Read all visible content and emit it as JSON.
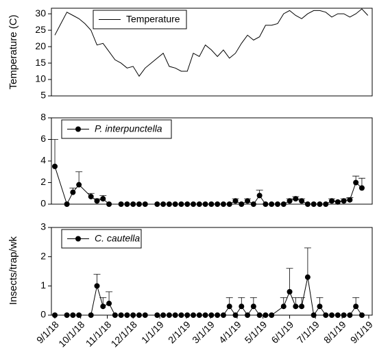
{
  "chart_data": [
    {
      "type": "line",
      "ylabel": "Temperature (C)",
      "legend": "upper left",
      "xlim": [
        "2018-08-28",
        "2019-09-05"
      ],
      "ylim": [
        5,
        31.7
      ],
      "yticks": [
        5,
        10,
        15,
        20,
        25,
        30
      ],
      "x": [
        "2018-09-01",
        "2018-09-08",
        "2018-09-15",
        "2018-09-22",
        "2018-09-29",
        "2018-10-06",
        "2018-10-13",
        "2018-10-20",
        "2018-10-27",
        "2018-11-03",
        "2018-11-10",
        "2018-11-17",
        "2018-11-24",
        "2018-12-01",
        "2018-12-08",
        "2018-12-15",
        "2018-12-22",
        "2018-12-29",
        "2019-01-05",
        "2019-01-12",
        "2019-01-19",
        "2019-01-26",
        "2019-02-02",
        "2019-02-09",
        "2019-02-16",
        "2019-02-23",
        "2019-03-02",
        "2019-03-09",
        "2019-03-16",
        "2019-03-23",
        "2019-03-30",
        "2019-04-06",
        "2019-04-13",
        "2019-04-20",
        "2019-04-27",
        "2019-05-04",
        "2019-05-11",
        "2019-05-18",
        "2019-05-25",
        "2019-06-01",
        "2019-06-08",
        "2019-06-15",
        "2019-06-22",
        "2019-06-29",
        "2019-07-06",
        "2019-07-13",
        "2019-07-20",
        "2019-07-27",
        "2019-08-03",
        "2019-08-10",
        "2019-08-17",
        "2019-08-24",
        "2019-08-31"
      ],
      "series": [
        {
          "name": "Temperature",
          "color": "#000000",
          "values": [
            23.5,
            27,
            30.5,
            29.5,
            28.5,
            27,
            25,
            20.5,
            21,
            18.5,
            16,
            15,
            13.5,
            14,
            11,
            13.5,
            15,
            16.5,
            18,
            14,
            13.5,
            12.5,
            12.5,
            18,
            17,
            20.5,
            19,
            17,
            19,
            16.5,
            18,
            21,
            23.5,
            22,
            23,
            26.5,
            26.5,
            27,
            30,
            31,
            29.5,
            28.5,
            30,
            31,
            31,
            30.5,
            29,
            30,
            30,
            29,
            30,
            31.5,
            29.5
          ]
        }
      ]
    },
    {
      "type": "errorline",
      "legend": "upper left",
      "xlim": [
        "2018-08-28",
        "2019-09-05"
      ],
      "ylim": [
        0,
        8
      ],
      "yticks": [
        0,
        2,
        4,
        6,
        8
      ],
      "x": [
        "2018-09-01",
        "2018-09-15",
        "2018-09-22",
        "2018-09-29",
        "2018-10-13",
        "2018-10-20",
        "2018-10-27",
        "2018-11-03",
        "2018-11-17",
        "2018-11-24",
        "2018-12-01",
        "2018-12-08",
        "2018-12-15",
        "2018-12-29",
        "2019-01-05",
        "2019-01-12",
        "2019-01-19",
        "2019-01-26",
        "2019-02-02",
        "2019-02-09",
        "2019-02-16",
        "2019-02-23",
        "2019-03-02",
        "2019-03-09",
        "2019-03-16",
        "2019-03-23",
        "2019-03-30",
        "2019-04-06",
        "2019-04-13",
        "2019-04-20",
        "2019-04-27",
        "2019-05-04",
        "2019-05-11",
        "2019-05-18",
        "2019-05-25",
        "2019-06-01",
        "2019-06-08",
        "2019-06-15",
        "2019-06-22",
        "2019-06-29",
        "2019-07-06",
        "2019-07-13",
        "2019-07-20",
        "2019-07-27",
        "2019-08-03",
        "2019-08-10",
        "2019-08-17",
        "2019-08-24"
      ],
      "series": [
        {
          "name": "P. interpunctella",
          "color": "#000000",
          "values": [
            3.5,
            0,
            1.1,
            1.8,
            0.7,
            0.3,
            0.5,
            0,
            0,
            0,
            0,
            0,
            0,
            0,
            0,
            0,
            0,
            0,
            0,
            0,
            0,
            0,
            0,
            0,
            0,
            0,
            0.3,
            0,
            0.3,
            0,
            0.8,
            0,
            0,
            0,
            0,
            0.3,
            0.5,
            0.3,
            0,
            0,
            0,
            0,
            0.3,
            0.2,
            0.3,
            0.4,
            2.0,
            1.5
          ],
          "errors": [
            2.5,
            0,
            0.4,
            1.2,
            0.3,
            0.2,
            0.3,
            0,
            0,
            0,
            0,
            0,
            0,
            0,
            0,
            0,
            0,
            0,
            0,
            0,
            0,
            0,
            0,
            0,
            0,
            0,
            0.2,
            0,
            0.2,
            0,
            0.5,
            0,
            0,
            0,
            0,
            0.2,
            0.2,
            0.2,
            0,
            0,
            0,
            0,
            0.2,
            0.1,
            0.2,
            0.2,
            0.6,
            0.9
          ]
        }
      ]
    },
    {
      "type": "errorline",
      "ylabel": "Insects/trap/wk",
      "legend": "upper left",
      "xlim": [
        "2018-08-28",
        "2019-09-05"
      ],
      "ylim": [
        0,
        3
      ],
      "yticks": [
        0,
        1,
        2,
        3
      ],
      "xticks": [
        {
          "value": "2018-09-01",
          "label": "9/1/18"
        },
        {
          "value": "2018-10-01",
          "label": "10/1/18"
        },
        {
          "value": "2018-11-01",
          "label": "11/1/18"
        },
        {
          "value": "2018-12-01",
          "label": "12/1/18"
        },
        {
          "value": "2019-01-01",
          "label": "1/1/19"
        },
        {
          "value": "2019-02-01",
          "label": "2/1/19"
        },
        {
          "value": "2019-03-01",
          "label": "3/1/19"
        },
        {
          "value": "2019-04-01",
          "label": "4/1/19"
        },
        {
          "value": "2019-05-01",
          "label": "5/1/19"
        },
        {
          "value": "2019-06-01",
          "label": "6/1/19"
        },
        {
          "value": "2019-07-01",
          "label": "7/1/19"
        },
        {
          "value": "2019-08-01",
          "label": "8/1/19"
        },
        {
          "value": "2019-09-01",
          "label": "9/1/19"
        }
      ],
      "x": [
        "2018-09-01",
        "2018-09-15",
        "2018-09-22",
        "2018-09-29",
        "2018-10-13",
        "2018-10-20",
        "2018-10-27",
        "2018-11-03",
        "2018-11-10",
        "2018-11-17",
        "2018-11-24",
        "2018-12-01",
        "2018-12-08",
        "2018-12-15",
        "2018-12-29",
        "2019-01-05",
        "2019-01-12",
        "2019-01-19",
        "2019-01-26",
        "2019-02-02",
        "2019-02-09",
        "2019-02-16",
        "2019-02-23",
        "2019-03-02",
        "2019-03-09",
        "2019-03-16",
        "2019-03-23",
        "2019-03-30",
        "2019-04-06",
        "2019-04-13",
        "2019-04-20",
        "2019-04-27",
        "2019-05-04",
        "2019-05-11",
        "2019-05-25",
        "2019-06-01",
        "2019-06-08",
        "2019-06-15",
        "2019-06-22",
        "2019-06-29",
        "2019-07-06",
        "2019-07-13",
        "2019-07-20",
        "2019-07-27",
        "2019-08-03",
        "2019-08-10",
        "2019-08-17",
        "2019-08-24"
      ],
      "series": [
        {
          "name": "C. cautella",
          "color": "#000000",
          "values": [
            0,
            0,
            0,
            0,
            0,
            1.0,
            0.3,
            0.4,
            0,
            0,
            0,
            0,
            0,
            0,
            0,
            0,
            0,
            0,
            0,
            0,
            0,
            0,
            0,
            0,
            0,
            0,
            0.3,
            0,
            0.3,
            0,
            0.3,
            0,
            0,
            0,
            0.3,
            0.8,
            0.3,
            0.3,
            1.3,
            0,
            0.3,
            0,
            0,
            0,
            0,
            0,
            0.3,
            0
          ],
          "errors": [
            0,
            0,
            0,
            0,
            0,
            0.4,
            0.3,
            0.4,
            0,
            0,
            0,
            0,
            0,
            0,
            0,
            0,
            0,
            0,
            0,
            0,
            0,
            0,
            0,
            0,
            0,
            0,
            0.3,
            0,
            0.3,
            0,
            0.3,
            0,
            0,
            0,
            0.3,
            0.8,
            0.3,
            0.3,
            1.0,
            0,
            0.3,
            0,
            0,
            0,
            0,
            0,
            0.3,
            0
          ]
        }
      ]
    }
  ]
}
